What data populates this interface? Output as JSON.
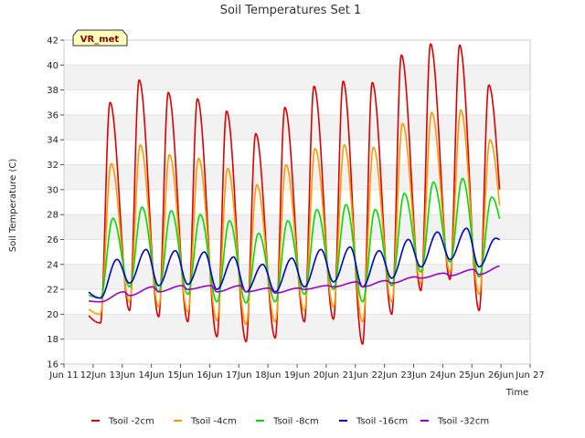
{
  "chart_data": {
    "type": "line",
    "title": "Soil Temperatures Set 1",
    "xlabel": "Time",
    "ylabel": "Soil Temperature (C)",
    "station_badge": "VR_met",
    "ylim": [
      16,
      42
    ],
    "yticks": [
      16,
      18,
      20,
      22,
      24,
      26,
      28,
      30,
      32,
      34,
      36,
      38,
      40,
      42
    ],
    "xlim": [
      11,
      27
    ],
    "xticks": [
      {
        "x": 11,
        "label": "Jun 11"
      },
      {
        "x": 12,
        "label": "12Jun"
      },
      {
        "x": 13,
        "label": "13Jun"
      },
      {
        "x": 14,
        "label": "14Jun"
      },
      {
        "x": 15,
        "label": "15Jun"
      },
      {
        "x": 16,
        "label": "16Jun"
      },
      {
        "x": 17,
        "label": "17Jun"
      },
      {
        "x": 18,
        "label": "18Jun"
      },
      {
        "x": 19,
        "label": "19Jun"
      },
      {
        "x": 20,
        "label": "20Jun"
      },
      {
        "x": 21,
        "label": "21Jun"
      },
      {
        "x": 22,
        "label": "22Jun"
      },
      {
        "x": 23,
        "label": "23Jun"
      },
      {
        "x": 24,
        "label": "24Jun"
      },
      {
        "x": 25,
        "label": "25Jun"
      },
      {
        "x": 26,
        "label": "26Jun"
      },
      {
        "x": 27,
        "label": "Jun 27"
      }
    ],
    "grid": "horizontal-bands",
    "legend_placement": "bottom",
    "series": [
      {
        "name": "Tsoil -2cm",
        "color": "#dd0000",
        "phase": 0.58,
        "maxs": [
          37.0,
          38.8,
          37.8,
          37.3,
          36.3,
          34.5,
          36.6,
          38.3,
          38.7,
          38.6,
          40.8,
          41.7,
          41.6,
          38.4
        ],
        "mins": [
          21.0,
          19.3,
          20.3,
          19.8,
          19.4,
          18.2,
          17.8,
          18.1,
          19.4,
          19.6,
          17.6,
          20.0,
          21.9,
          22.8,
          20.3,
          24.0
        ]
      },
      {
        "name": "Tsoil -4cm",
        "color": "#ff9900",
        "phase": 0.62,
        "maxs": [
          32.1,
          33.6,
          32.8,
          32.5,
          31.7,
          30.4,
          32.0,
          33.3,
          33.6,
          33.4,
          35.3,
          36.2,
          36.4,
          34.0
        ],
        "mins": [
          21.2,
          20.0,
          21.0,
          20.6,
          20.2,
          19.5,
          19.2,
          19.4,
          20.3,
          20.6,
          19.4,
          21.0,
          22.5,
          23.4,
          21.6,
          24.2
        ]
      },
      {
        "name": "Tsoil -8cm",
        "color": "#00dd00",
        "phase": 0.68,
        "maxs": [
          27.7,
          28.6,
          28.3,
          28.0,
          27.5,
          26.5,
          27.5,
          28.4,
          28.8,
          28.4,
          29.7,
          30.6,
          30.9,
          29.4
        ],
        "mins": [
          22.0,
          21.3,
          22.2,
          21.8,
          21.6,
          21.0,
          20.9,
          21.0,
          21.6,
          22.0,
          21.0,
          22.3,
          23.4,
          24.2,
          23.0,
          25.6
        ]
      },
      {
        "name": "Tsoil -16cm",
        "color": "#0000cc",
        "phase": 0.82,
        "maxs": [
          24.4,
          25.2,
          25.1,
          25.0,
          24.6,
          24.0,
          24.5,
          25.2,
          25.4,
          25.1,
          26.0,
          26.6,
          26.9,
          26.1
        ],
        "mins": [
          22.7,
          21.3,
          22.5,
          22.3,
          22.4,
          22.0,
          21.8,
          21.8,
          22.2,
          22.6,
          22.2,
          22.9,
          23.8,
          24.4,
          23.8,
          25.5
        ]
      },
      {
        "name": "Tsoil -32cm",
        "color": "#9900cc",
        "phase": 1.05,
        "maxs": [
          21.8,
          22.2,
          22.3,
          22.3,
          22.3,
          22.1,
          22.1,
          22.3,
          22.6,
          22.7,
          23.0,
          23.3,
          23.6,
          23.9
        ],
        "mins": [
          21.2,
          21.0,
          21.5,
          21.8,
          22.0,
          21.8,
          21.8,
          21.7,
          22.0,
          22.2,
          22.2,
          22.5,
          22.9,
          23.1,
          23.2,
          23.7
        ]
      }
    ]
  }
}
